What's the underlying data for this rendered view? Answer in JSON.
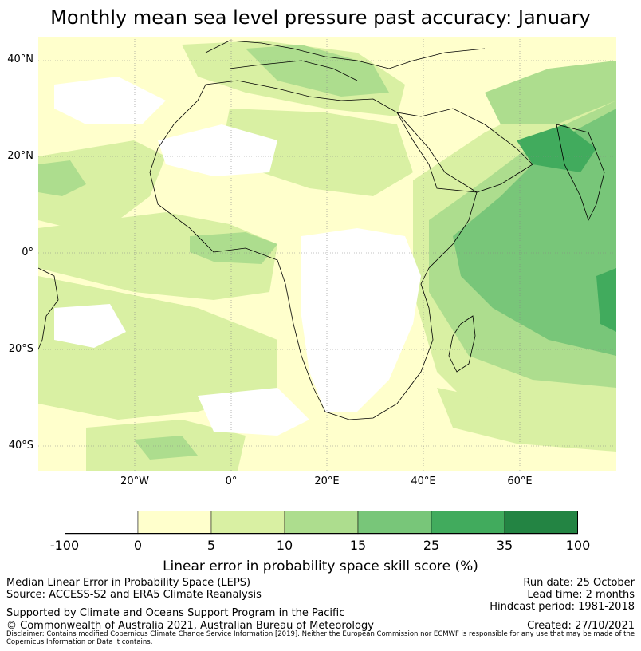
{
  "title": "Monthly mean sea level pressure past accuracy: January",
  "map": {
    "lat_labels": [
      "40°N",
      "20°N",
      "0°",
      "20°S",
      "40°S"
    ],
    "lon_labels": [
      "20°W",
      "0°",
      "20°E",
      "40°E",
      "60°E"
    ],
    "colors": {
      "ocean_base": "#ffffcc",
      "low": "#d9f0a3",
      "mid": "#addd8e",
      "high": "#78c679",
      "higher": "#41ab5d",
      "land_white": "#ffffff",
      "coast": "#000000"
    }
  },
  "colorbar": {
    "ticks": [
      "-100",
      "0",
      "5",
      "10",
      "15",
      "25",
      "35",
      "100"
    ],
    "colors": [
      "#ffffff",
      "#ffffcc",
      "#d9f0a3",
      "#addd8e",
      "#78c679",
      "#41ab5d",
      "#238443"
    ],
    "label": "Linear error in probability space skill score (%)"
  },
  "footer": {
    "left_line1": "Median Linear Error in Probability Space (LEPS)",
    "left_line2": "Source: ACCESS-S2 and ERA5 Climate Reanalysis",
    "left_line3": "Supported by Climate and Oceans Support Program in the Pacific",
    "left_line4": "© Commonwealth of Australia 2021, Australian Bureau of Meteorology",
    "right_line1": "Run date: 25 October",
    "right_line2": "Lead time: 2 months",
    "right_line3": "Hindcast period: 1981-2018",
    "right_line4": "Created: 27/10/2021",
    "disclaimer": "Disclaimer: Contains modified Copernicus Climate Change Service Information [2019]. Neither the European Commission nor ECMWF is responsible for any use that may be made of the Copernicus Information or Data it contains."
  }
}
